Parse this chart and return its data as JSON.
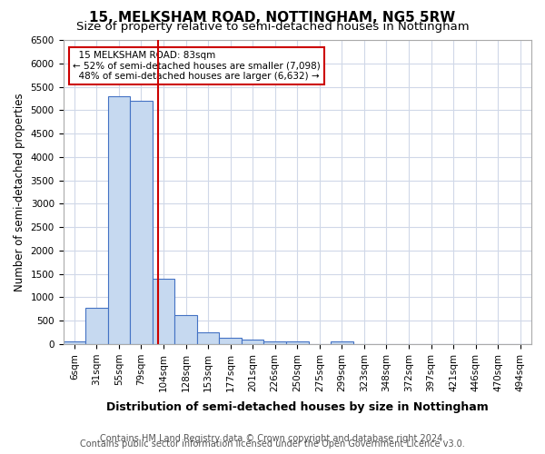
{
  "title": "15, MELKSHAM ROAD, NOTTINGHAM, NG5 5RW",
  "subtitle": "Size of property relative to semi-detached houses in Nottingham",
  "xlabel": "Distribution of semi-detached houses by size in Nottingham",
  "ylabel": "Number of semi-detached properties",
  "footnote1": "Contains HM Land Registry data © Crown copyright and database right 2024.",
  "footnote2": "Contains public sector information licensed under the Open Government Licence v3.0.",
  "bins": [
    "6sqm",
    "31sqm",
    "55sqm",
    "79sqm",
    "104sqm",
    "128sqm",
    "153sqm",
    "177sqm",
    "201sqm",
    "226sqm",
    "250sqm",
    "275sqm",
    "299sqm",
    "323sqm",
    "348sqm",
    "372sqm",
    "397sqm",
    "421sqm",
    "446sqm",
    "470sqm",
    "494sqm"
  ],
  "values": [
    50,
    780,
    5300,
    5200,
    1400,
    630,
    250,
    130,
    100,
    60,
    60,
    0,
    60,
    0,
    0,
    0,
    0,
    0,
    0,
    0,
    0
  ],
  "bar_color": "#c6d9f0",
  "bar_edge_color": "#4472c4",
  "property_line_x": 3.75,
  "property_label": "15 MELKSHAM ROAD: 83sqm",
  "smaller_pct": "52%",
  "smaller_count": "7,098",
  "larger_pct": "48%",
  "larger_count": "6,632",
  "annotation_box_color": "#cc0000",
  "red_line_color": "#cc0000",
  "ylim": [
    0,
    6500
  ],
  "yticks": [
    0,
    500,
    1000,
    1500,
    2000,
    2500,
    3000,
    3500,
    4000,
    4500,
    5000,
    5500,
    6000,
    6500
  ],
  "grid_color": "#d0d8e8",
  "background_color": "#ffffff",
  "title_fontsize": 11,
  "subtitle_fontsize": 9.5,
  "tick_fontsize": 7.5,
  "ylabel_fontsize": 8.5,
  "xlabel_fontsize": 9,
  "footnote_fontsize": 7
}
